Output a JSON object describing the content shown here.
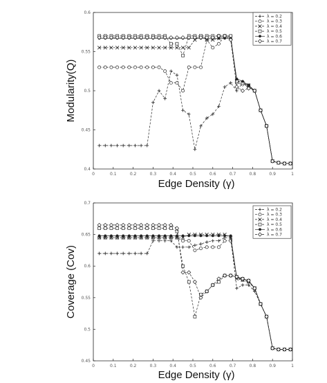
{
  "chart_data": [
    {
      "type": "line",
      "title": "",
      "xlabel": "Edge Density (γ)",
      "ylabel": "Modularity(Q)",
      "xlim": [
        0,
        1
      ],
      "ylim": [
        0.4,
        0.6
      ],
      "xticks": [
        {
          "v": 0,
          "label": "0"
        },
        {
          "v": 0.1,
          "label": "0.1"
        },
        {
          "v": 0.2,
          "label": "0.2"
        },
        {
          "v": 0.3,
          "label": "0.3"
        },
        {
          "v": 0.4,
          "label": "0.4"
        },
        {
          "v": 0.5,
          "label": "0.5"
        },
        {
          "v": 0.6,
          "label": "0.6"
        },
        {
          "v": 0.7,
          "label": "0.7"
        },
        {
          "v": 0.8,
          "label": "0.8"
        },
        {
          "v": 0.9,
          "label": "0.9"
        },
        {
          "v": 1,
          "label": "1"
        }
      ],
      "yticks": [
        {
          "v": 0.4,
          "label": "0.4"
        },
        {
          "v": 0.45,
          "label": "0.45"
        },
        {
          "v": 0.5,
          "label": "0.5"
        },
        {
          "v": 0.55,
          "label": "0.55"
        },
        {
          "v": 0.6,
          "label": "0.6"
        }
      ],
      "legend_position": "top-right",
      "x": [
        0.03,
        0.06,
        0.09,
        0.12,
        0.15,
        0.18,
        0.21,
        0.24,
        0.27,
        0.3,
        0.33,
        0.36,
        0.39,
        0.42,
        0.45,
        0.48,
        0.51,
        0.54,
        0.57,
        0.6,
        0.63,
        0.66,
        0.69,
        0.72,
        0.75,
        0.78,
        0.81,
        0.84,
        0.87,
        0.9,
        0.93,
        0.96,
        0.99
      ],
      "series": [
        {
          "name": "λ = 0.2",
          "marker": "plus",
          "dash": "3,2",
          "values": [
            0.43,
            0.43,
            0.43,
            0.43,
            0.43,
            0.43,
            0.43,
            0.43,
            0.43,
            0.485,
            0.5,
            0.49,
            0.525,
            0.52,
            0.475,
            0.47,
            0.425,
            0.455,
            0.465,
            0.47,
            0.48,
            0.505,
            0.51,
            0.5,
            0.51,
            0.505,
            0.5,
            0.475,
            0.455,
            0.41,
            0.408,
            0.407,
            0.407
          ]
        },
        {
          "name": "λ = 0.3",
          "marker": "circle",
          "dash": "3,2",
          "values": [
            0.53,
            0.53,
            0.53,
            0.53,
            0.53,
            0.53,
            0.53,
            0.53,
            0.53,
            0.53,
            0.53,
            0.525,
            0.51,
            0.51,
            0.5,
            0.53,
            0.53,
            0.53,
            0.565,
            0.555,
            0.56,
            0.57,
            0.57,
            0.51,
            0.508,
            0.505,
            0.5,
            0.475,
            0.455,
            0.41,
            0.408,
            0.407,
            0.407
          ]
        },
        {
          "name": "λ = 0.4",
          "marker": "x",
          "dash": "3,2",
          "values": [
            0.555,
            0.555,
            0.555,
            0.555,
            0.555,
            0.555,
            0.555,
            0.555,
            0.555,
            0.555,
            0.555,
            0.555,
            0.555,
            0.555,
            0.555,
            0.555,
            0.565,
            0.57,
            0.565,
            0.565,
            0.567,
            0.57,
            0.568,
            0.513,
            0.51,
            0.507,
            0.5,
            0.475,
            0.455,
            0.41,
            0.408,
            0.407,
            0.407
          ]
        },
        {
          "name": "λ = 0.5",
          "marker": "square",
          "dash": "3,2",
          "values": [
            0.57,
            0.57,
            0.57,
            0.57,
            0.57,
            0.57,
            0.57,
            0.57,
            0.57,
            0.57,
            0.57,
            0.57,
            0.56,
            0.56,
            0.545,
            0.57,
            0.57,
            0.57,
            0.57,
            0.57,
            0.57,
            0.57,
            0.57,
            0.512,
            0.51,
            0.507,
            0.5,
            0.475,
            0.455,
            0.41,
            0.408,
            0.407,
            0.407
          ]
        },
        {
          "name": "λ = 0.6",
          "marker": "dot",
          "dash": "none",
          "values": [
            0.567,
            0.567,
            0.567,
            0.567,
            0.567,
            0.567,
            0.567,
            0.567,
            0.567,
            0.567,
            0.567,
            0.567,
            0.567,
            0.567,
            0.567,
            0.567,
            0.567,
            0.567,
            0.567,
            0.567,
            0.567,
            0.567,
            0.567,
            0.515,
            0.512,
            0.507,
            0.5,
            0.475,
            0.455,
            0.41,
            0.408,
            0.407,
            0.407
          ]
        },
        {
          "name": "λ = 0.7",
          "marker": "diamond",
          "dash": "3,2",
          "values": [
            0.568,
            0.568,
            0.568,
            0.568,
            0.568,
            0.568,
            0.568,
            0.568,
            0.568,
            0.568,
            0.568,
            0.568,
            0.568,
            0.568,
            0.568,
            0.568,
            0.568,
            0.568,
            0.568,
            0.568,
            0.57,
            0.57,
            0.565,
            0.505,
            0.5,
            0.503,
            0.5,
            0.475,
            0.455,
            0.41,
            0.408,
            0.407,
            0.407
          ]
        }
      ]
    },
    {
      "type": "line",
      "title": "",
      "xlabel": "Edge Density (γ)",
      "ylabel": "Coverage (Cov)",
      "xlim": [
        0,
        1
      ],
      "ylim": [
        0.45,
        0.7
      ],
      "xticks": [
        {
          "v": 0,
          "label": "0"
        },
        {
          "v": 0.1,
          "label": "0.1"
        },
        {
          "v": 0.2,
          "label": "0.2"
        },
        {
          "v": 0.3,
          "label": "0.3"
        },
        {
          "v": 0.4,
          "label": "0.4"
        },
        {
          "v": 0.5,
          "label": "0.5"
        },
        {
          "v": 0.6,
          "label": "0.6"
        },
        {
          "v": 0.7,
          "label": "0.7"
        },
        {
          "v": 0.8,
          "label": "0.8"
        },
        {
          "v": 0.9,
          "label": "0.9"
        },
        {
          "v": 1,
          "label": "1"
        }
      ],
      "yticks": [
        {
          "v": 0.45,
          "label": "0.45"
        },
        {
          "v": 0.5,
          "label": "0.5"
        },
        {
          "v": 0.55,
          "label": "0.55"
        },
        {
          "v": 0.6,
          "label": "0.6"
        },
        {
          "v": 0.65,
          "label": "0.65"
        },
        {
          "v": 0.7,
          "label": "0.7"
        }
      ],
      "legend_position": "top-right",
      "x": [
        0.03,
        0.06,
        0.09,
        0.12,
        0.15,
        0.18,
        0.21,
        0.24,
        0.27,
        0.3,
        0.33,
        0.36,
        0.39,
        0.42,
        0.45,
        0.48,
        0.51,
        0.54,
        0.57,
        0.6,
        0.63,
        0.66,
        0.69,
        0.72,
        0.75,
        0.78,
        0.81,
        0.84,
        0.87,
        0.9,
        0.93,
        0.96,
        0.99
      ],
      "series": [
        {
          "name": "λ = 0.2",
          "marker": "plus",
          "dash": "3,2",
          "values": [
            0.62,
            0.62,
            0.62,
            0.62,
            0.62,
            0.62,
            0.62,
            0.62,
            0.62,
            0.64,
            0.64,
            0.64,
            0.64,
            0.63,
            0.63,
            0.63,
            0.633,
            0.635,
            0.638,
            0.64,
            0.64,
            0.645,
            0.645,
            0.565,
            0.57,
            0.57,
            0.56,
            0.54,
            0.52,
            0.47,
            0.468,
            0.468,
            0.468
          ]
        },
        {
          "name": "λ = 0.3",
          "marker": "circle",
          "dash": "3,2",
          "values": [
            0.645,
            0.645,
            0.645,
            0.645,
            0.645,
            0.645,
            0.645,
            0.645,
            0.645,
            0.645,
            0.645,
            0.645,
            0.645,
            0.645,
            0.64,
            0.64,
            0.625,
            0.628,
            0.63,
            0.63,
            0.63,
            0.64,
            0.64,
            0.582,
            0.578,
            0.575,
            0.565,
            0.54,
            0.52,
            0.47,
            0.468,
            0.468,
            0.468
          ]
        },
        {
          "name": "λ = 0.4",
          "marker": "x",
          "dash": "3,2",
          "values": [
            0.645,
            0.645,
            0.645,
            0.645,
            0.645,
            0.645,
            0.645,
            0.645,
            0.645,
            0.645,
            0.645,
            0.645,
            0.645,
            0.645,
            0.645,
            0.65,
            0.65,
            0.65,
            0.65,
            0.65,
            0.65,
            0.65,
            0.645,
            0.58,
            0.578,
            0.575,
            0.565,
            0.54,
            0.52,
            0.47,
            0.468,
            0.468,
            0.468
          ]
        },
        {
          "name": "λ = 0.5",
          "marker": "square",
          "dash": "3,2",
          "values": [
            0.66,
            0.66,
            0.66,
            0.66,
            0.66,
            0.66,
            0.66,
            0.66,
            0.66,
            0.66,
            0.66,
            0.66,
            0.66,
            0.655,
            0.6,
            0.575,
            0.52,
            0.555,
            0.56,
            0.57,
            0.575,
            0.585,
            0.585,
            0.583,
            0.58,
            0.577,
            0.565,
            0.54,
            0.52,
            0.47,
            0.468,
            0.468,
            0.468
          ]
        },
        {
          "name": "λ = 0.6",
          "marker": "dot",
          "dash": "none",
          "values": [
            0.648,
            0.648,
            0.648,
            0.648,
            0.648,
            0.648,
            0.648,
            0.648,
            0.648,
            0.648,
            0.648,
            0.648,
            0.648,
            0.648,
            0.648,
            0.648,
            0.648,
            0.648,
            0.648,
            0.648,
            0.648,
            0.648,
            0.648,
            0.582,
            0.58,
            0.577,
            0.565,
            0.54,
            0.52,
            0.47,
            0.468,
            0.468,
            0.468
          ]
        },
        {
          "name": "λ = 0.7",
          "marker": "diamond",
          "dash": "3,2",
          "values": [
            0.665,
            0.665,
            0.665,
            0.665,
            0.665,
            0.665,
            0.665,
            0.665,
            0.665,
            0.665,
            0.665,
            0.665,
            0.665,
            0.66,
            0.59,
            0.59,
            0.575,
            0.55,
            0.56,
            0.57,
            0.58,
            0.585,
            0.585,
            0.583,
            0.58,
            0.577,
            0.565,
            0.54,
            0.52,
            0.47,
            0.468,
            0.468,
            0.468
          ]
        }
      ]
    }
  ]
}
